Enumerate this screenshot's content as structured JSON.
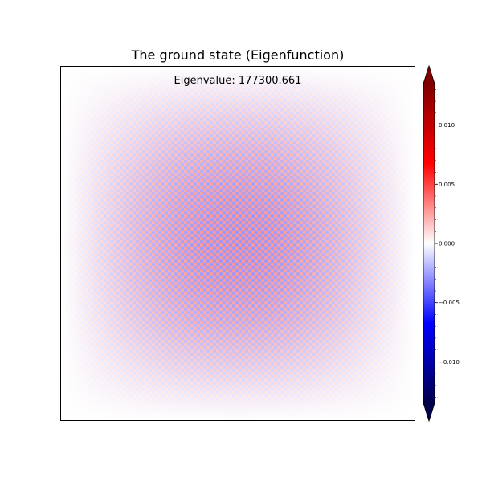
{
  "chart_data": {
    "type": "heatmap",
    "title": "The ground state (Eigenfunction)",
    "annotation": "Eigenvalue: 177300.661",
    "xlabel": "",
    "ylabel": "",
    "x_ticks_visible": false,
    "y_ticks_visible": false,
    "grid": false,
    "field": {
      "description_free": true,
      "rows": 110,
      "cols": 110,
      "pattern": "checkerboard",
      "envelope": "sin(pi*x)*sin(pi*y)",
      "peak_amplitude": 0.0028
    },
    "colorbar": {
      "colormap": "seismic",
      "vmin": -0.0135,
      "vmax": 0.0135,
      "extend": "both",
      "ticks": [
        -0.01,
        -0.005,
        0.0,
        0.005,
        0.01
      ],
      "tick_labels": [
        "−0.010",
        "−0.005",
        "0.000",
        "0.005",
        "0.010"
      ],
      "minor_step": 0.001,
      "colors": {
        "low": "#00004c",
        "blue": "#0000ff",
        "mid": "#ffffff",
        "red": "#ff0000",
        "high": "#800000"
      }
    }
  }
}
